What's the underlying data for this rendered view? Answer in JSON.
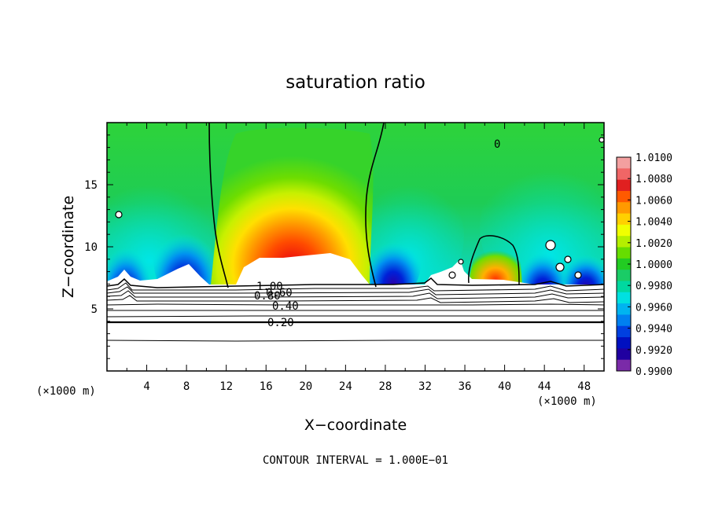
{
  "chart_data": {
    "type": "heatmap",
    "title": "saturation ratio",
    "xlabel": "X−coordinate",
    "ylabel": "Z−coordinate",
    "x_unit": "(×1000 m)",
    "z_unit": "(×1000 m)",
    "xlim": [
      0,
      50
    ],
    "ylim": [
      0,
      20
    ],
    "x_ticks": [
      "4",
      "8",
      "12",
      "16",
      "20",
      "24",
      "28",
      "32",
      "36",
      "40",
      "44",
      "48"
    ],
    "y_ticks": [
      "5",
      "10",
      "15"
    ],
    "colorbar": {
      "labels": [
        "1.0100",
        "1.0080",
        "1.0060",
        "1.0040",
        "1.0020",
        "1.0000",
        "0.9980",
        "0.9960",
        "0.9940",
        "0.9920",
        "0.9900"
      ],
      "colors": [
        "#f3a0a0",
        "#f06666",
        "#e02020",
        "#ff5a00",
        "#ff9a00",
        "#ffd000",
        "#f0ff00",
        "#b4ef00",
        "#66dd00",
        "#22cc22",
        "#1acc66",
        "#00d8a0",
        "#00e0e0",
        "#00b4f0",
        "#0080f0",
        "#0040e0",
        "#0010c0",
        "#2000a0",
        "#7a2aa8"
      ]
    },
    "contour_labels": [
      "1.00",
      "0.80",
      "0.60",
      "0.40",
      "0.20",
      "0"
    ],
    "contour_interval_text": "CONTOUR INTERVAL = 1.000E−01"
  }
}
